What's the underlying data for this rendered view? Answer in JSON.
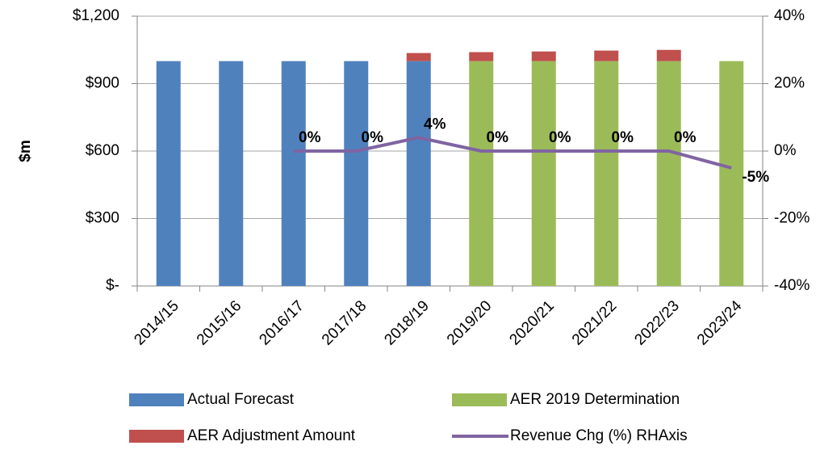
{
  "chart_data": {
    "type": "bar",
    "y_label": "$m",
    "categories": [
      "2014/15",
      "2015/16",
      "2016/17",
      "2017/18",
      "2018/19",
      "2019/20",
      "2020/21",
      "2021/22",
      "2022/23",
      "2023/24"
    ],
    "series": [
      {
        "name": "Actual Forecast",
        "color": "#4f81bd",
        "values": [
          1000,
          1000,
          1000,
          1000,
          1000,
          null,
          null,
          null,
          null,
          null
        ]
      },
      {
        "name": "AER 2019 Determination",
        "color": "#9bbb59",
        "values": [
          null,
          null,
          null,
          null,
          null,
          1000,
          1000,
          1000,
          1000,
          1000
        ]
      },
      {
        "name": "AER Adjustment Amount",
        "color": "#c0504d",
        "values": [
          null,
          null,
          null,
          null,
          36,
          40,
          43,
          47,
          50,
          null
        ]
      },
      {
        "name": "Revenue Chg (%) RHAxis",
        "color": "#8064a2",
        "type": "line",
        "axis": "y2",
        "values": [
          null,
          null,
          0,
          0,
          4,
          0,
          0,
          0,
          0,
          -5
        ],
        "value_labels": [
          null,
          null,
          "0%",
          "0%",
          "4%",
          "0%",
          "0%",
          "0%",
          "0%",
          "-5%"
        ]
      }
    ],
    "ylim": [
      0,
      1200
    ],
    "yticks": [
      {
        "value": 0,
        "label": "$-"
      },
      {
        "value": 300,
        "label": "$300"
      },
      {
        "value": 600,
        "label": "$600"
      },
      {
        "value": 900,
        "label": "$900"
      },
      {
        "value": 1200,
        "label": "$1,200"
      }
    ],
    "y2lim": [
      -40,
      40
    ],
    "y2ticks": [
      {
        "value": -40,
        "label": "-40%"
      },
      {
        "value": -20,
        "label": "-20%"
      },
      {
        "value": 0,
        "label": "0%"
      },
      {
        "value": 20,
        "label": "20%"
      },
      {
        "value": 40,
        "label": "40%"
      }
    ],
    "grid": true
  }
}
